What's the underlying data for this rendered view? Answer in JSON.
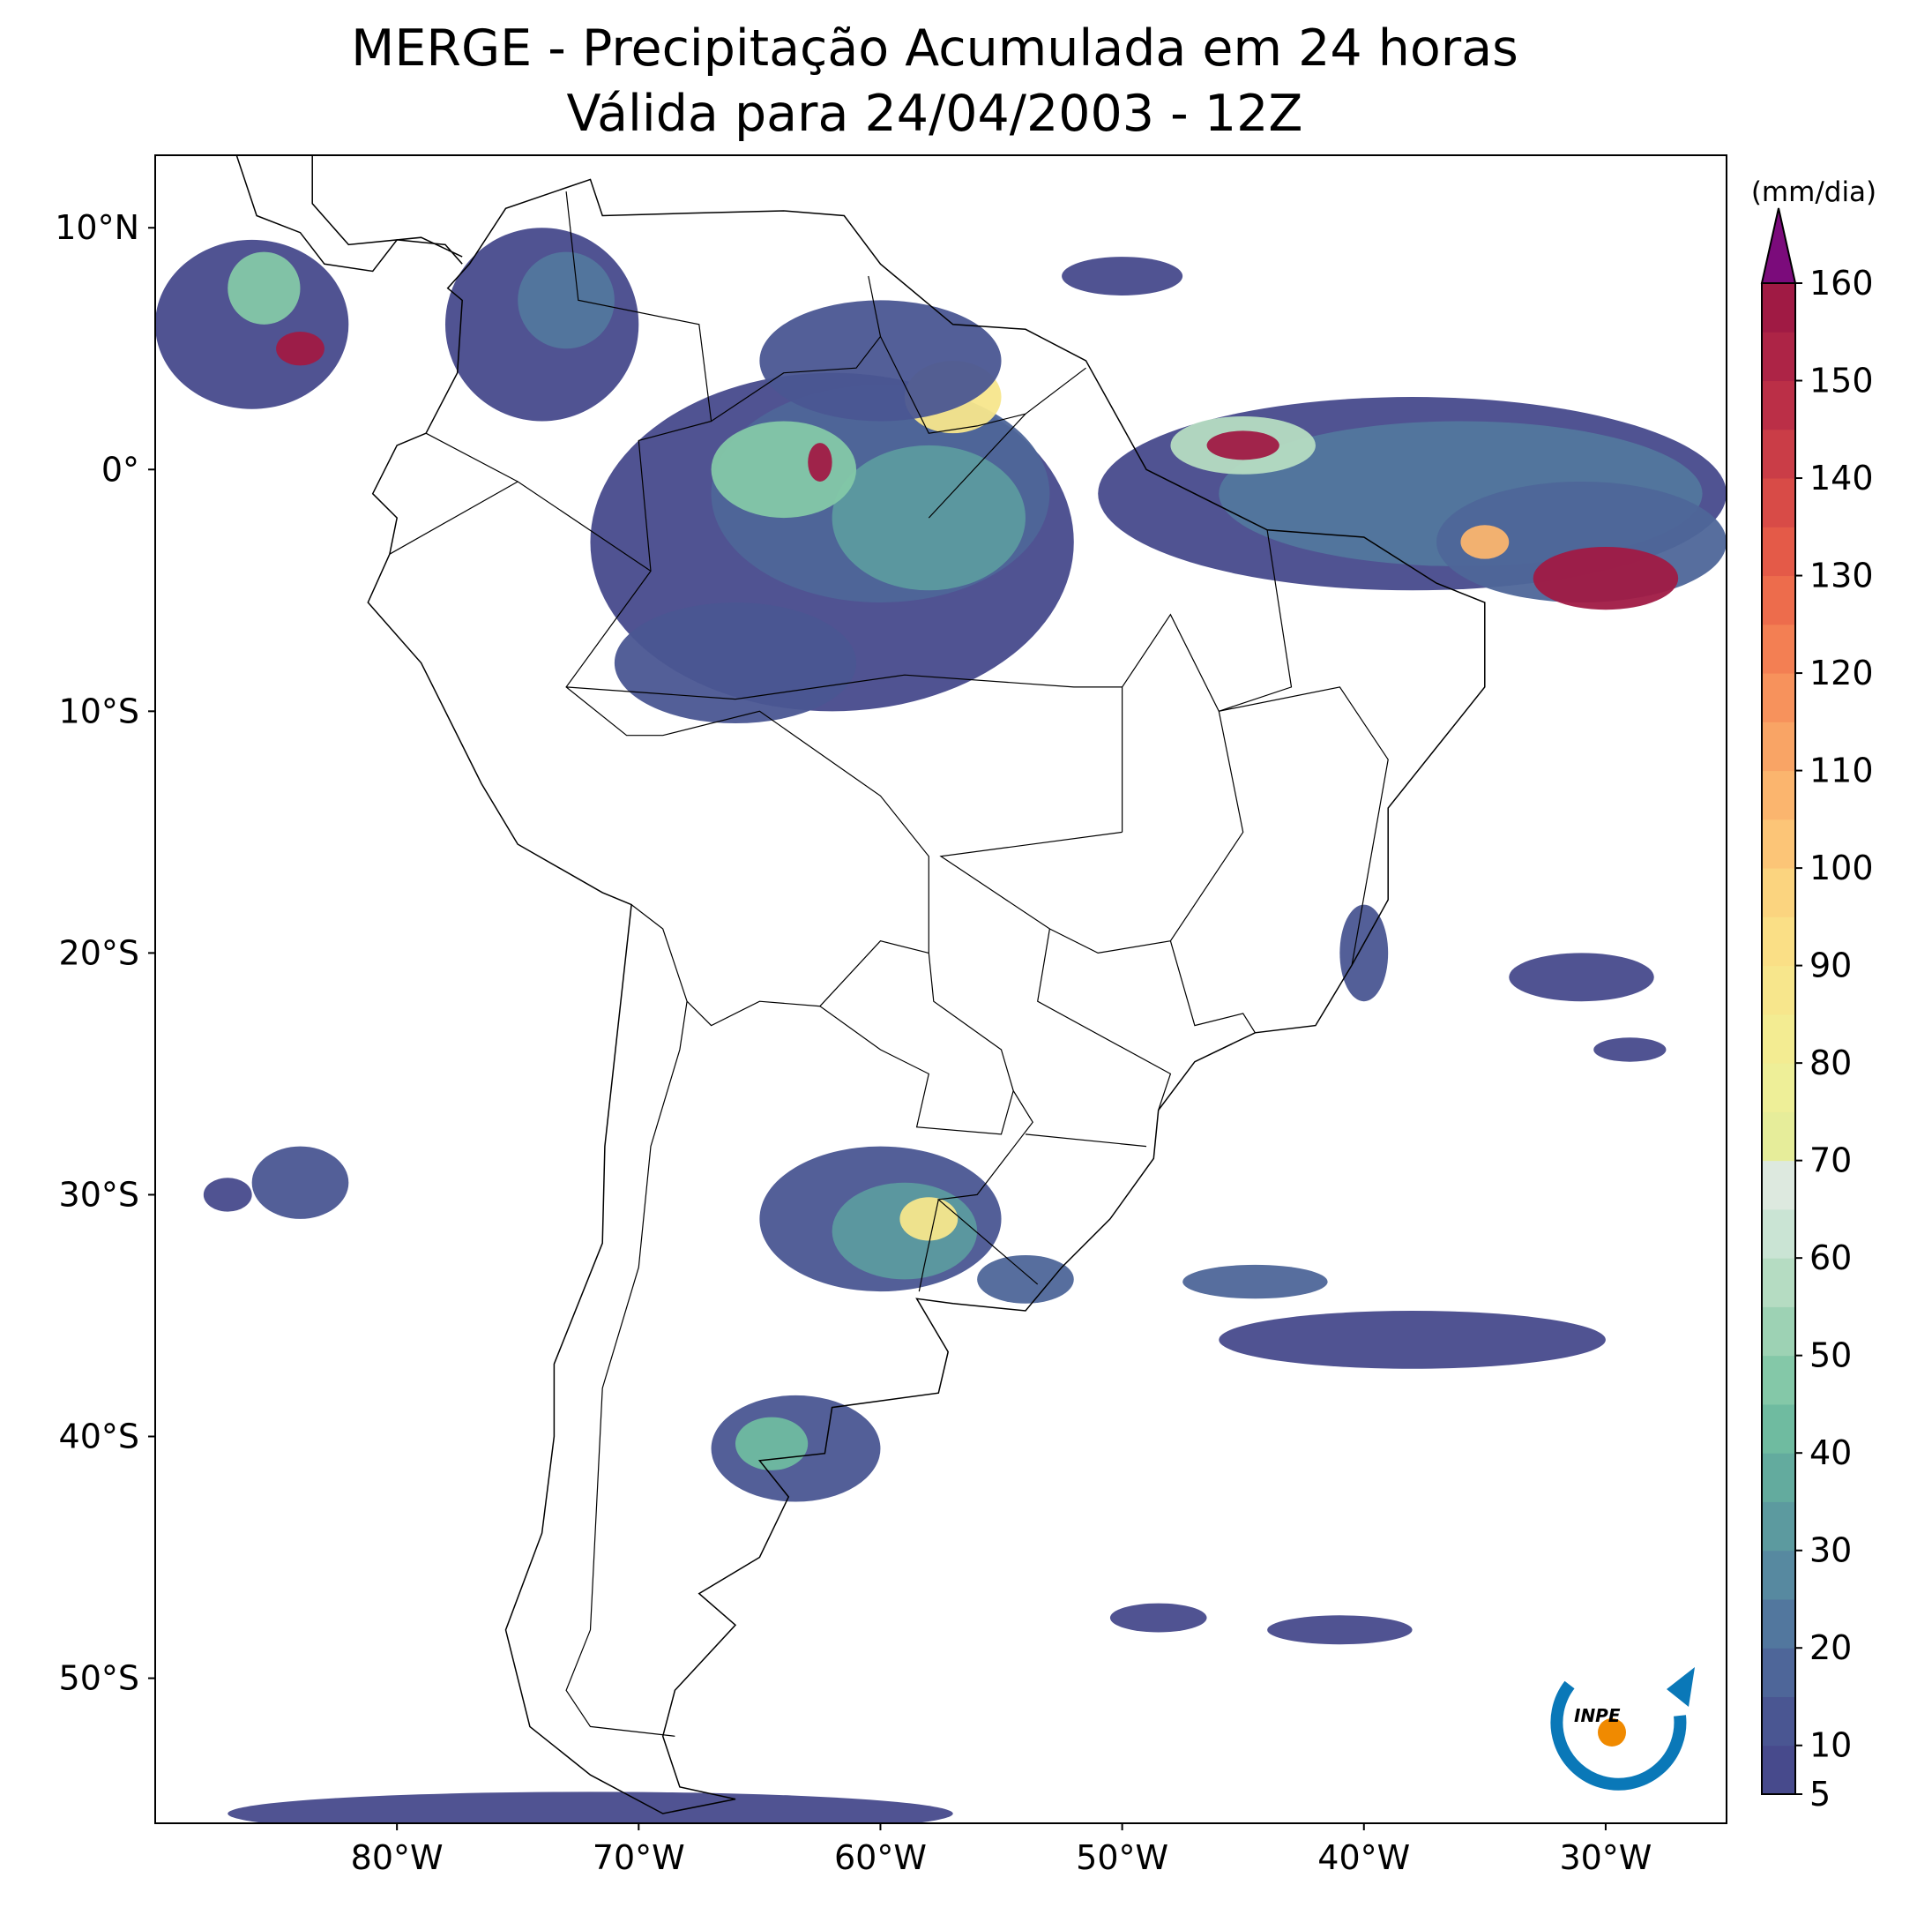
{
  "chart_data": {
    "type": "map",
    "title": "MERGE - Precipitação Acumulada em 24 horas",
    "subtitle": "Válida para 24/04/2003 - 12Z",
    "xlim": [
      -90,
      -25
    ],
    "ylim": [
      -56,
      13
    ],
    "xticks": [
      {
        "value": -80,
        "label": "80°W"
      },
      {
        "value": -70,
        "label": "70°W"
      },
      {
        "value": -60,
        "label": "60°W"
      },
      {
        "value": -50,
        "label": "50°W"
      },
      {
        "value": -40,
        "label": "40°W"
      },
      {
        "value": -30,
        "label": "30°W"
      }
    ],
    "yticks": [
      {
        "value": 10,
        "label": "10°N"
      },
      {
        "value": 0,
        "label": "0°"
      },
      {
        "value": -10,
        "label": "10°S"
      },
      {
        "value": -20,
        "label": "20°S"
      },
      {
        "value": -30,
        "label": "30°S"
      },
      {
        "value": -40,
        "label": "40°S"
      },
      {
        "value": -50,
        "label": "50°S"
      }
    ],
    "colorbar": {
      "label": "(mm/dia)",
      "lim": [
        5,
        160
      ],
      "ticks": [
        5,
        10,
        20,
        30,
        40,
        50,
        60,
        70,
        80,
        90,
        100,
        110,
        120,
        130,
        140,
        150,
        160
      ],
      "levels": [
        5,
        10,
        15,
        20,
        25,
        30,
        35,
        40,
        45,
        50,
        55,
        60,
        65,
        70,
        75,
        80,
        85,
        90,
        95,
        100,
        105,
        110,
        115,
        120,
        125,
        130,
        135,
        140,
        145,
        150,
        155,
        160
      ],
      "colors": [
        "#474a8c",
        "#4a5692",
        "#4e6699",
        "#52779e",
        "#5789a0",
        "#5c9a9f",
        "#63ab9e",
        "#6fbba0",
        "#84c8a8",
        "#9dd2b4",
        "#b5dcc2",
        "#cae4d4",
        "#dde9df",
        "#e6ed9a",
        "#eeef98",
        "#f3ec92",
        "#f7e68c",
        "#fadf86",
        "#fbd47f",
        "#fcc577",
        "#fbb56e",
        "#f9a465",
        "#f7925c",
        "#f37f53",
        "#ed6c4c",
        "#e45a48",
        "#d84b47",
        "#ca3d47",
        "#bb2f47",
        "#ad2446",
        "#a01a44"
      ],
      "extend_color": "#7b0b7b"
    },
    "logo": "INPE"
  }
}
